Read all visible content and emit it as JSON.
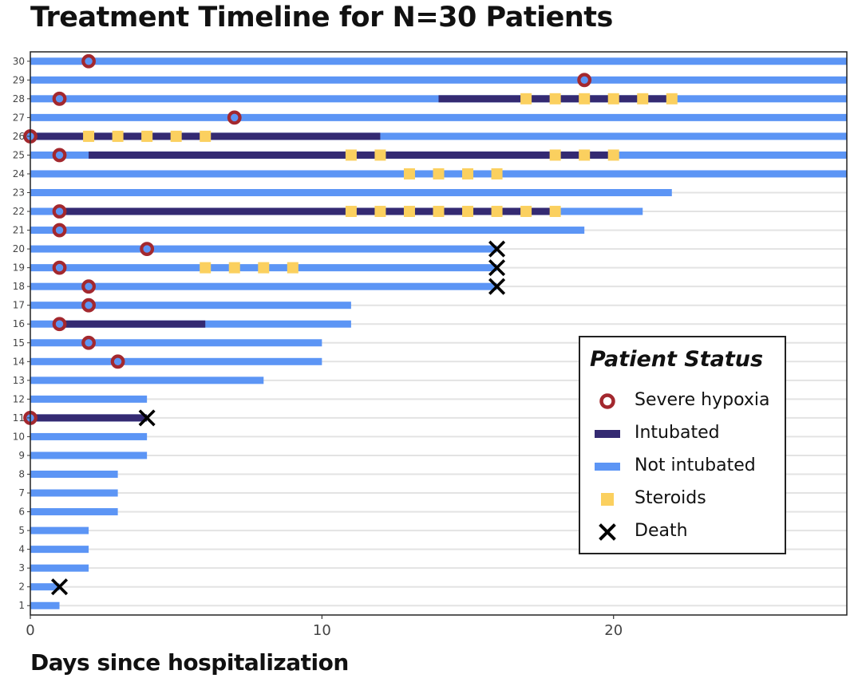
{
  "chart_data": {
    "type": "timeline",
    "title": "Treatment Timeline for N=30 Patients",
    "xlabel": "Days since hospitalization",
    "ylabel": "",
    "xlim": [
      0,
      28
    ],
    "ylim": [
      0.5,
      30.5
    ],
    "x_ticks": [
      0,
      10,
      20
    ],
    "y_ticks": [
      1,
      2,
      3,
      4,
      5,
      6,
      7,
      8,
      9,
      10,
      11,
      12,
      13,
      14,
      15,
      16,
      17,
      18,
      19,
      20,
      21,
      22,
      23,
      24,
      25,
      26,
      27,
      28,
      29,
      30
    ],
    "legend": {
      "title": "Patient Status",
      "position": "right",
      "items": [
        {
          "key": "hypoxia",
          "label": "Severe hypoxia"
        },
        {
          "key": "intubated",
          "label": "Intubated"
        },
        {
          "key": "not_intubated",
          "label": "Not intubated"
        },
        {
          "key": "steroids",
          "label": "Steroids"
        },
        {
          "key": "death",
          "label": "Death"
        }
      ]
    },
    "colors": {
      "not_intubated": "#5c95f5",
      "intubated": "#342a72",
      "hypoxia": "#a3282e",
      "steroids": "#fbd05f",
      "death": "#000000",
      "grid": "#e3e3e3"
    },
    "patients": [
      {
        "id": 1,
        "end": 1,
        "intubated": [],
        "hypoxia": [],
        "steroids": [],
        "death": null
      },
      {
        "id": 2,
        "end": 1,
        "intubated": [],
        "hypoxia": [],
        "steroids": [],
        "death": 1
      },
      {
        "id": 3,
        "end": 2,
        "intubated": [],
        "hypoxia": [],
        "steroids": [],
        "death": null
      },
      {
        "id": 4,
        "end": 2,
        "intubated": [],
        "hypoxia": [],
        "steroids": [],
        "death": null
      },
      {
        "id": 5,
        "end": 2,
        "intubated": [],
        "hypoxia": [],
        "steroids": [],
        "death": null
      },
      {
        "id": 6,
        "end": 3,
        "intubated": [],
        "hypoxia": [],
        "steroids": [],
        "death": null
      },
      {
        "id": 7,
        "end": 3,
        "intubated": [],
        "hypoxia": [],
        "steroids": [],
        "death": null
      },
      {
        "id": 8,
        "end": 3,
        "intubated": [],
        "hypoxia": [],
        "steroids": [],
        "death": null
      },
      {
        "id": 9,
        "end": 4,
        "intubated": [],
        "hypoxia": [],
        "steroids": [],
        "death": null
      },
      {
        "id": 10,
        "end": 4,
        "intubated": [],
        "hypoxia": [],
        "steroids": [],
        "death": null
      },
      {
        "id": 11,
        "end": 4,
        "intubated": [
          [
            0,
            4
          ]
        ],
        "hypoxia": [
          0
        ],
        "steroids": [],
        "death": 4
      },
      {
        "id": 12,
        "end": 4,
        "intubated": [],
        "hypoxia": [],
        "steroids": [],
        "death": null
      },
      {
        "id": 13,
        "end": 8,
        "intubated": [],
        "hypoxia": [],
        "steroids": [],
        "death": null
      },
      {
        "id": 14,
        "end": 10,
        "intubated": [],
        "hypoxia": [
          3
        ],
        "steroids": [],
        "death": null
      },
      {
        "id": 15,
        "end": 10,
        "intubated": [],
        "hypoxia": [
          2
        ],
        "steroids": [],
        "death": null
      },
      {
        "id": 16,
        "end": 11,
        "intubated": [
          [
            1,
            6
          ]
        ],
        "hypoxia": [
          1
        ],
        "steroids": [],
        "death": null
      },
      {
        "id": 17,
        "end": 11,
        "intubated": [],
        "hypoxia": [
          2
        ],
        "steroids": [],
        "death": null
      },
      {
        "id": 18,
        "end": 16,
        "intubated": [],
        "hypoxia": [
          2
        ],
        "steroids": [],
        "death": 16
      },
      {
        "id": 19,
        "end": 16,
        "intubated": [],
        "hypoxia": [
          1
        ],
        "steroids": [
          6,
          7,
          8,
          9
        ],
        "death": 16
      },
      {
        "id": 20,
        "end": 16,
        "intubated": [],
        "hypoxia": [
          4
        ],
        "steroids": [],
        "death": 16
      },
      {
        "id": 21,
        "end": 19,
        "intubated": [],
        "hypoxia": [
          1
        ],
        "steroids": [],
        "death": null
      },
      {
        "id": 22,
        "end": 21,
        "intubated": [
          [
            1,
            18
          ]
        ],
        "hypoxia": [
          1
        ],
        "steroids": [
          11,
          12,
          13,
          14,
          15,
          16,
          17,
          18
        ],
        "death": null
      },
      {
        "id": 23,
        "end": 22,
        "intubated": [],
        "hypoxia": [],
        "steroids": [],
        "death": null
      },
      {
        "id": 24,
        "end": 28,
        "intubated": [],
        "hypoxia": [],
        "steroids": [
          13,
          14,
          15,
          16
        ],
        "death": null
      },
      {
        "id": 25,
        "end": 28,
        "intubated": [
          [
            2,
            20
          ]
        ],
        "hypoxia": [
          1
        ],
        "steroids": [
          11,
          12,
          18,
          19,
          20
        ],
        "death": null
      },
      {
        "id": 26,
        "end": 28,
        "intubated": [
          [
            0,
            12
          ]
        ],
        "hypoxia": [
          0
        ],
        "steroids": [
          2,
          3,
          4,
          5,
          6
        ],
        "death": null
      },
      {
        "id": 27,
        "end": 28,
        "intubated": [],
        "hypoxia": [
          7
        ],
        "steroids": [],
        "death": null
      },
      {
        "id": 28,
        "end": 28,
        "intubated": [
          [
            14,
            22
          ]
        ],
        "hypoxia": [
          1
        ],
        "steroids": [
          17,
          18,
          19,
          20,
          21,
          22
        ],
        "death": null
      },
      {
        "id": 29,
        "end": 28,
        "intubated": [],
        "hypoxia": [
          19
        ],
        "steroids": [],
        "death": null
      },
      {
        "id": 30,
        "end": 28,
        "intubated": [],
        "hypoxia": [
          2
        ],
        "steroids": [],
        "death": null
      }
    ]
  }
}
